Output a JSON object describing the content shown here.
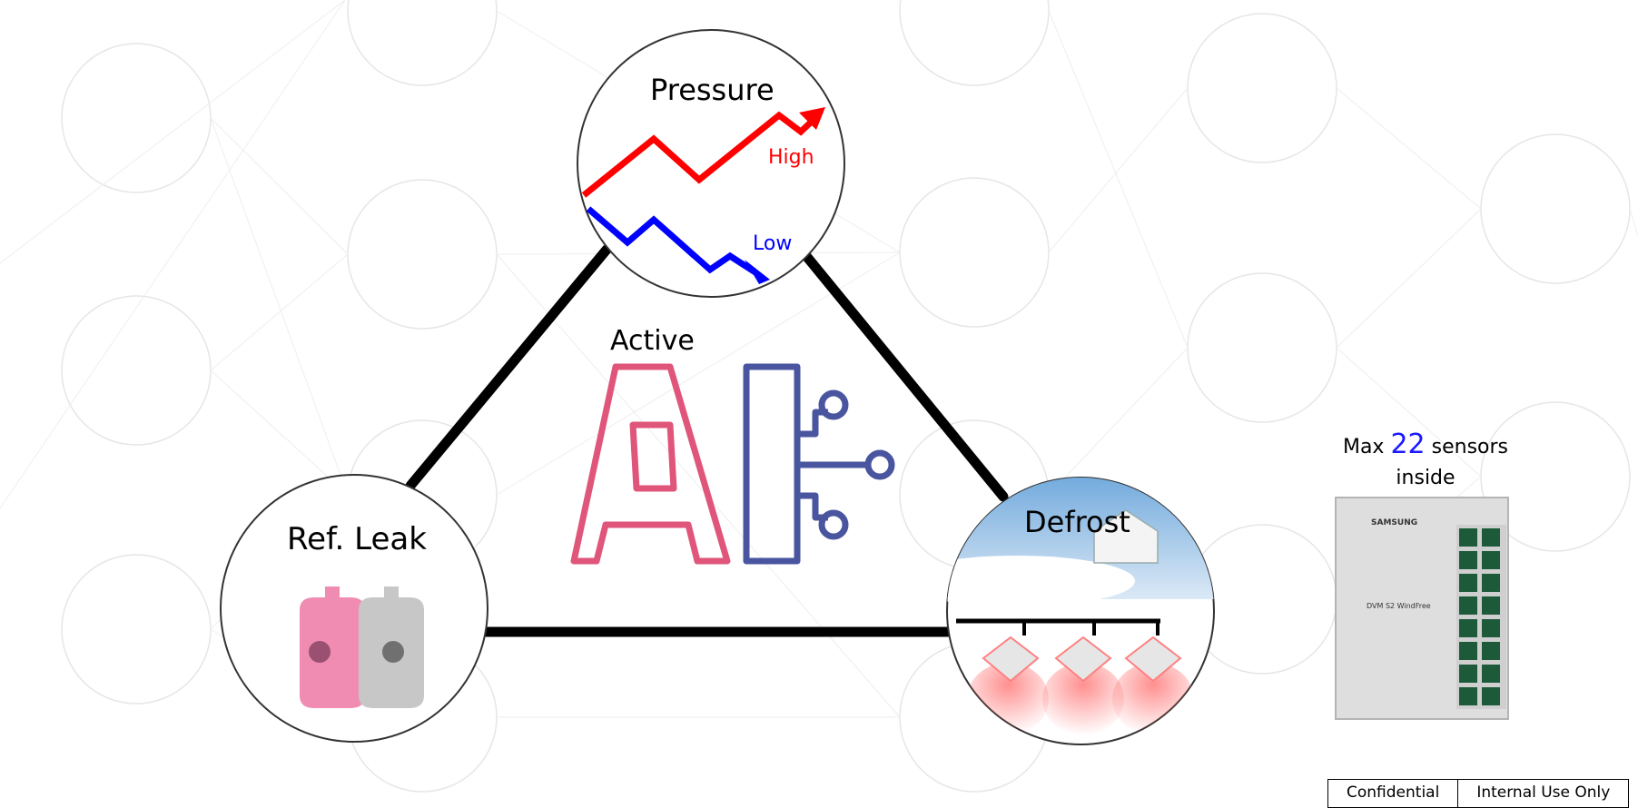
{
  "center": {
    "active_label": "Active",
    "ai_letters": "AI"
  },
  "pressure": {
    "title": "Pressure",
    "high_label": "High",
    "low_label": "Low",
    "high_color": "#ff0000",
    "low_color": "#0000ff"
  },
  "leak": {
    "title": "Ref. Leak"
  },
  "defrost": {
    "title": "Defrost"
  },
  "sensors_note": {
    "prefix": "Max",
    "count": "22",
    "suffix": "sensors",
    "line2": "inside"
  },
  "unit": {
    "brand": "SAMSUNG",
    "model": "DVM S2 WindFree"
  },
  "footer": {
    "classification": "Confidential",
    "scope": "Internal Use Only"
  },
  "colors": {
    "ai_pink": "#e0557a",
    "ai_navy": "#4a55a0",
    "triangle": "#000000",
    "bg_circles": "#e8e8e8"
  }
}
